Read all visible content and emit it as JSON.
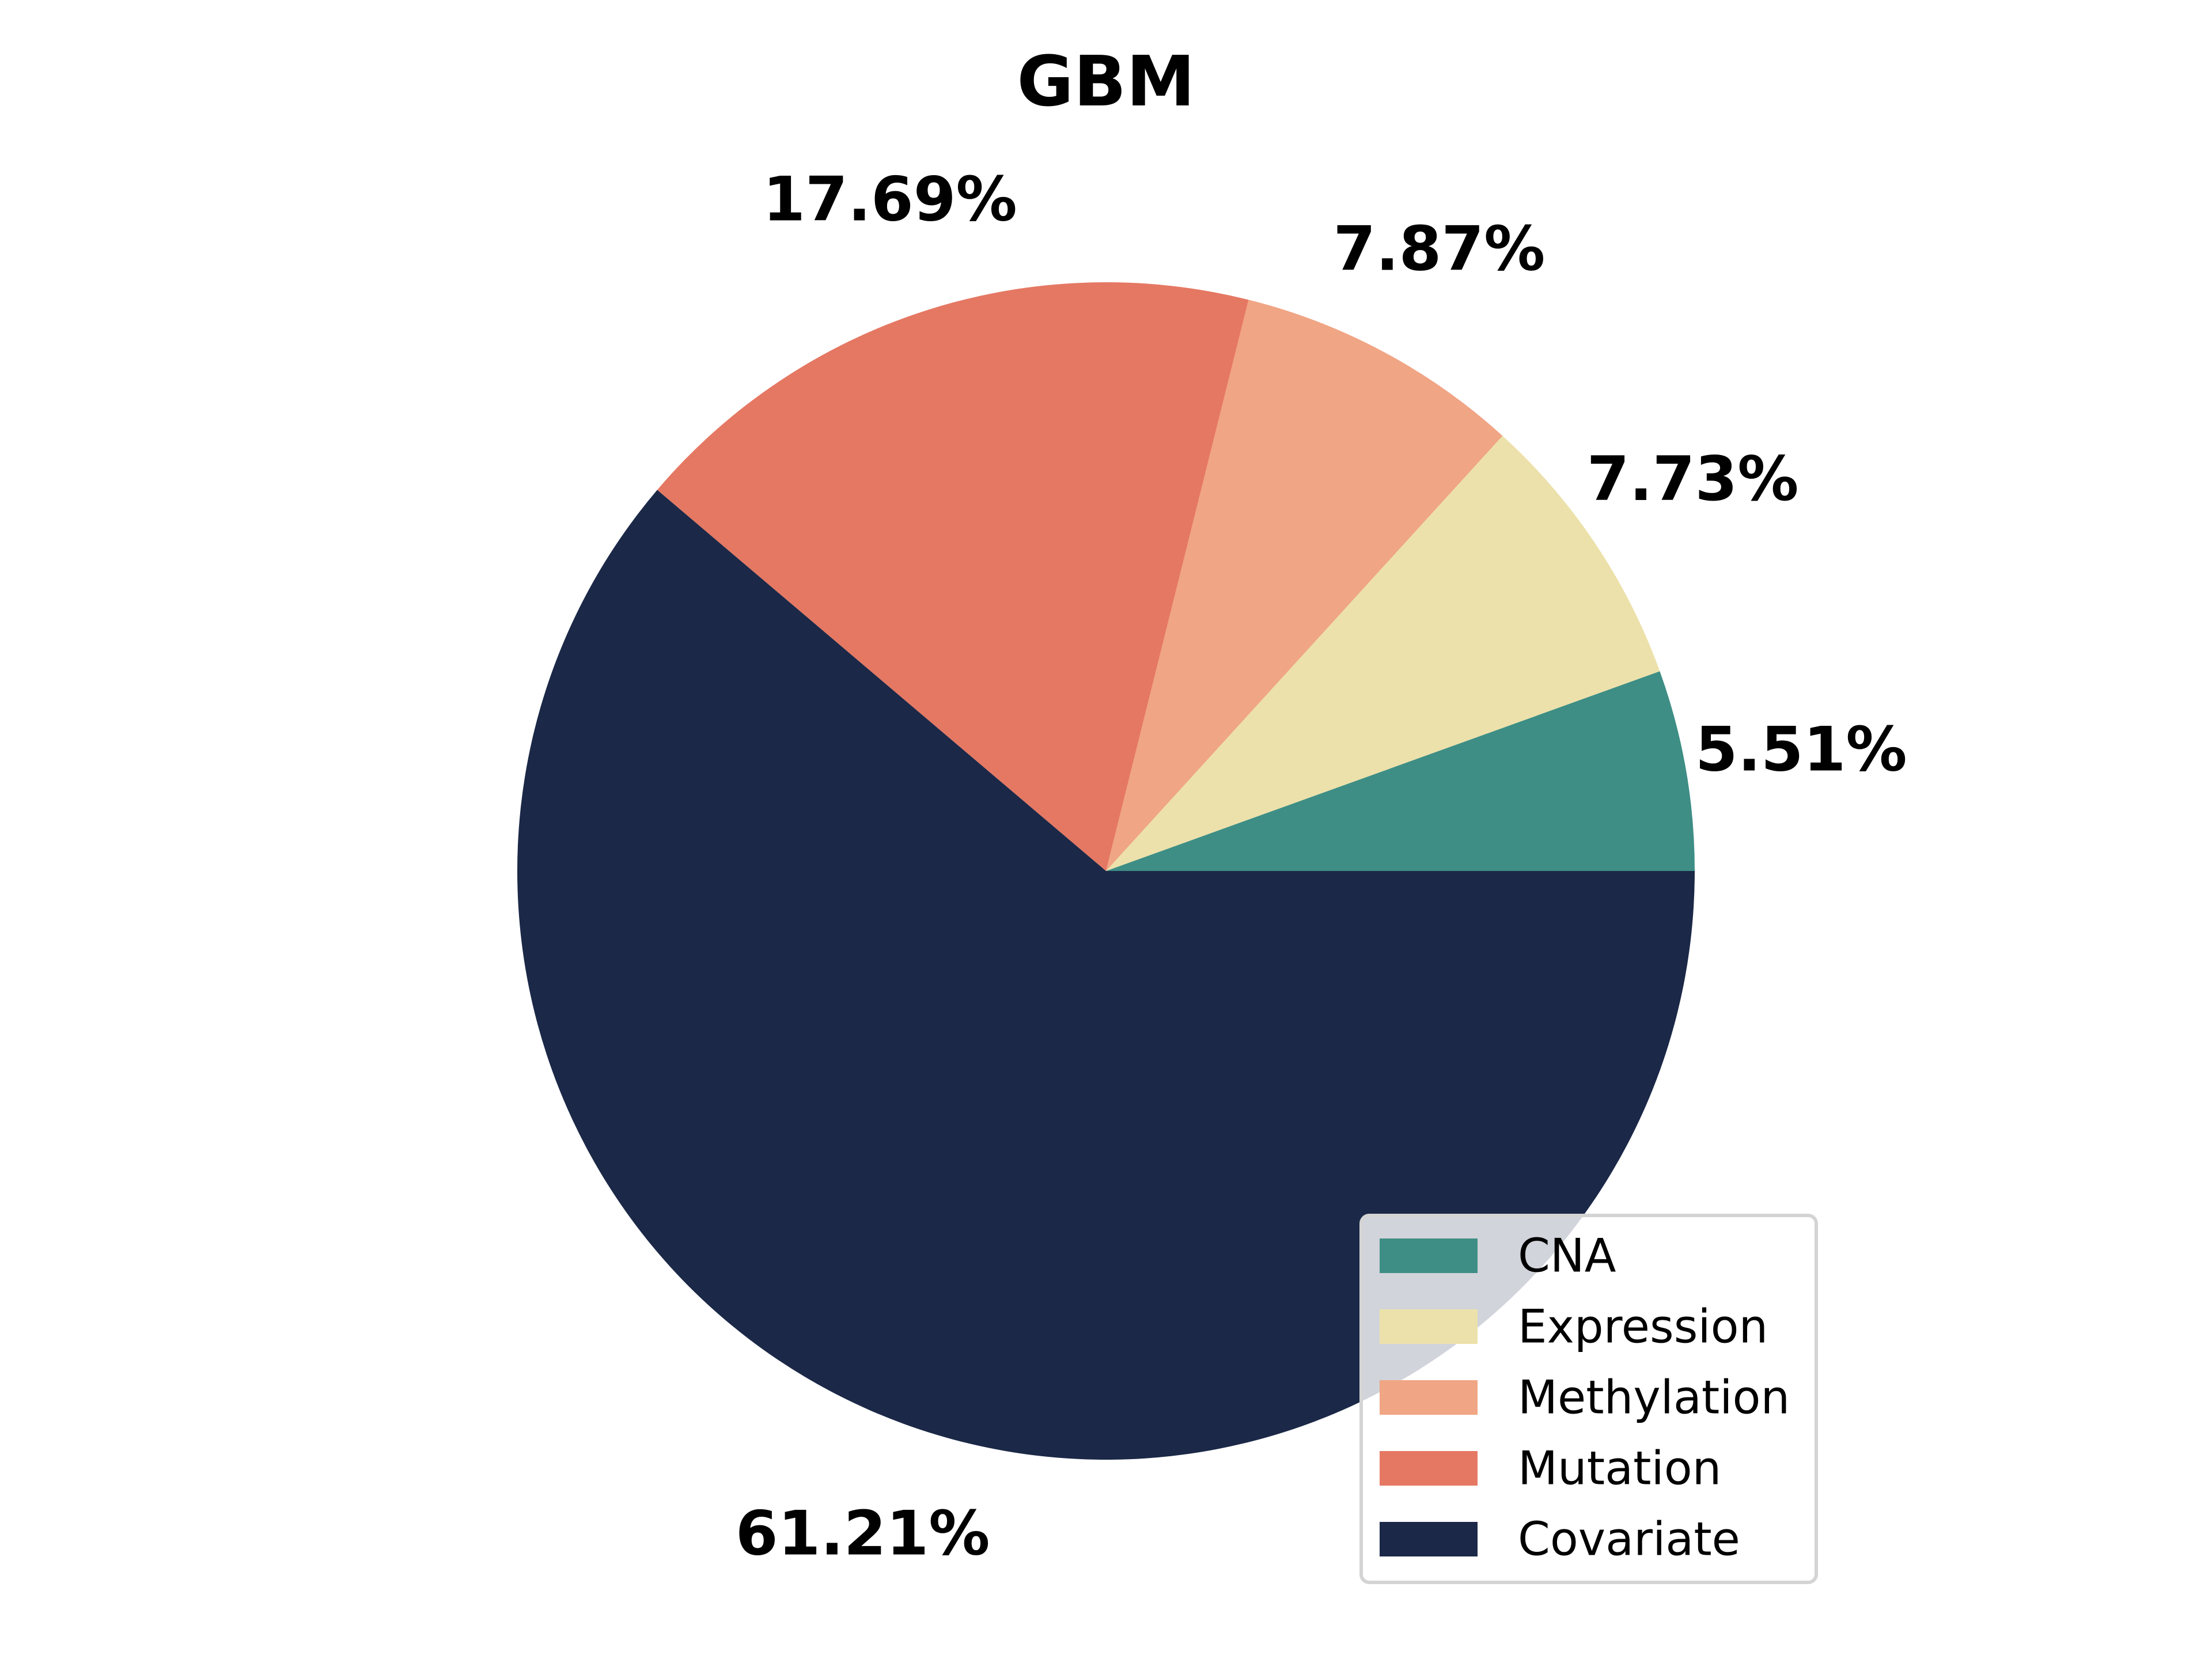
{
  "chart_data": {
    "type": "pie",
    "title": "GBM",
    "start_angle_deg": 0,
    "direction": "counterclockwise",
    "legend_position": "lower-right",
    "slices": [
      {
        "label": "CNA",
        "value": 5.51,
        "value_label": "5.51%",
        "color": "#3e8e85"
      },
      {
        "label": "Expression",
        "value": 7.73,
        "value_label": "7.73%",
        "color": "#ece1aa"
      },
      {
        "label": "Methylation",
        "value": 7.87,
        "value_label": "7.87%",
        "color": "#f0a584"
      },
      {
        "label": "Mutation",
        "value": 17.69,
        "value_label": "17.69%",
        "color": "#e57863"
      },
      {
        "label": "Covariate",
        "value": 61.21,
        "value_label": "61.21%",
        "color": "#1b2847"
      }
    ]
  }
}
